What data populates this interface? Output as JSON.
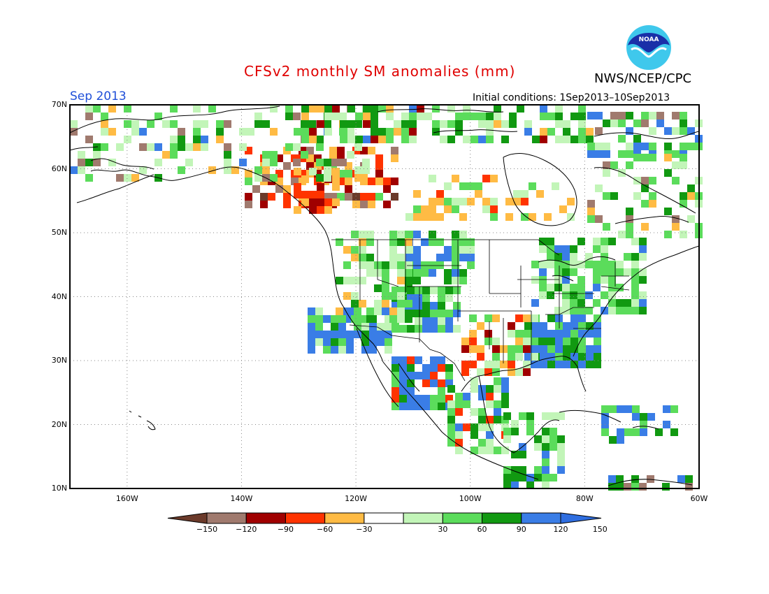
{
  "title": "CFSv2 monthly SM anomalies (mm)",
  "agency": "NWS/NCEP/CPC",
  "logo_text": "NOAA",
  "month_label": "Sep 2013",
  "initial_conditions": "Initial conditions: 1Sep2013–10Sep2013",
  "lat_labels": [
    "70N",
    "60N",
    "50N",
    "40N",
    "30N",
    "20N",
    "10N"
  ],
  "lon_labels": [
    "160W",
    "140W",
    "120W",
    "100W",
    "80W",
    "60W"
  ],
  "colorbar": {
    "labels": [
      "−150",
      "−120",
      "−90",
      "−60",
      "−30",
      "30",
      "60",
      "90",
      "120",
      "150"
    ],
    "colors": [
      "#6b3a2a",
      "#a07a6e",
      "#a00000",
      "#ff3300",
      "#ffbb44",
      "#ffffff",
      "#c2f5b8",
      "#5bdc5b",
      "#119911",
      "#3a7de6",
      "#2f6ee0"
    ]
  },
  "colors": {
    "ocean": "#ffffff",
    "coast": "#000000",
    "grid": "#888888"
  }
}
